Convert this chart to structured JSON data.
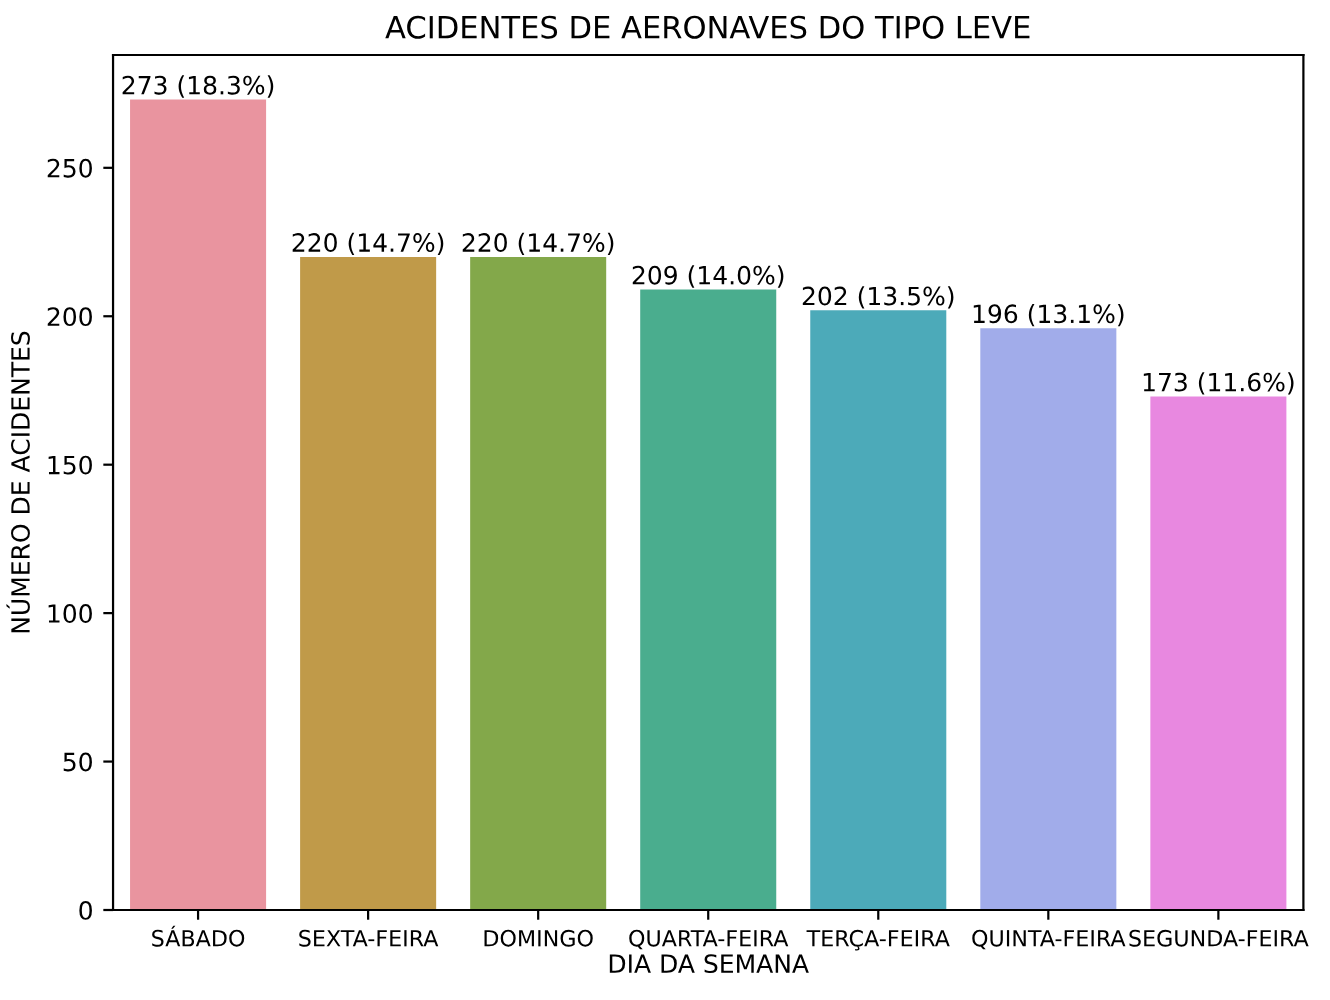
{
  "chart_data": {
    "type": "bar",
    "title": "ACIDENTES DE AERONAVES DO TIPO LEVE",
    "xlabel": "DIA DA SEMANA",
    "ylabel": "NÚMERO DE ACIDENTES",
    "categories": [
      "SÁBADO",
      "SEXTA-FEIRA",
      "DOMINGO",
      "QUARTA-FEIRA",
      "TERÇA-FEIRA",
      "QUINTA-FEIRA",
      "SEGUNDA-FEIRA"
    ],
    "values": [
      273,
      220,
      220,
      209,
      202,
      196,
      173
    ],
    "colors": [
      "#e9949f",
      "#c09a49",
      "#83a84a",
      "#4aad8e",
      "#4caab9",
      "#a1acea",
      "#e888e0"
    ],
    "value_labels": [
      "273 (18.3%)",
      "220 (14.7%)",
      "220 (14.7%)",
      "209 (14.0%)",
      "202 (13.5%)",
      "196 (13.1%)",
      "173 (11.6%)"
    ],
    "ylim": [
      0,
      288
    ],
    "yticks": [
      0,
      50,
      100,
      150,
      200,
      250
    ],
    "grid": false
  }
}
